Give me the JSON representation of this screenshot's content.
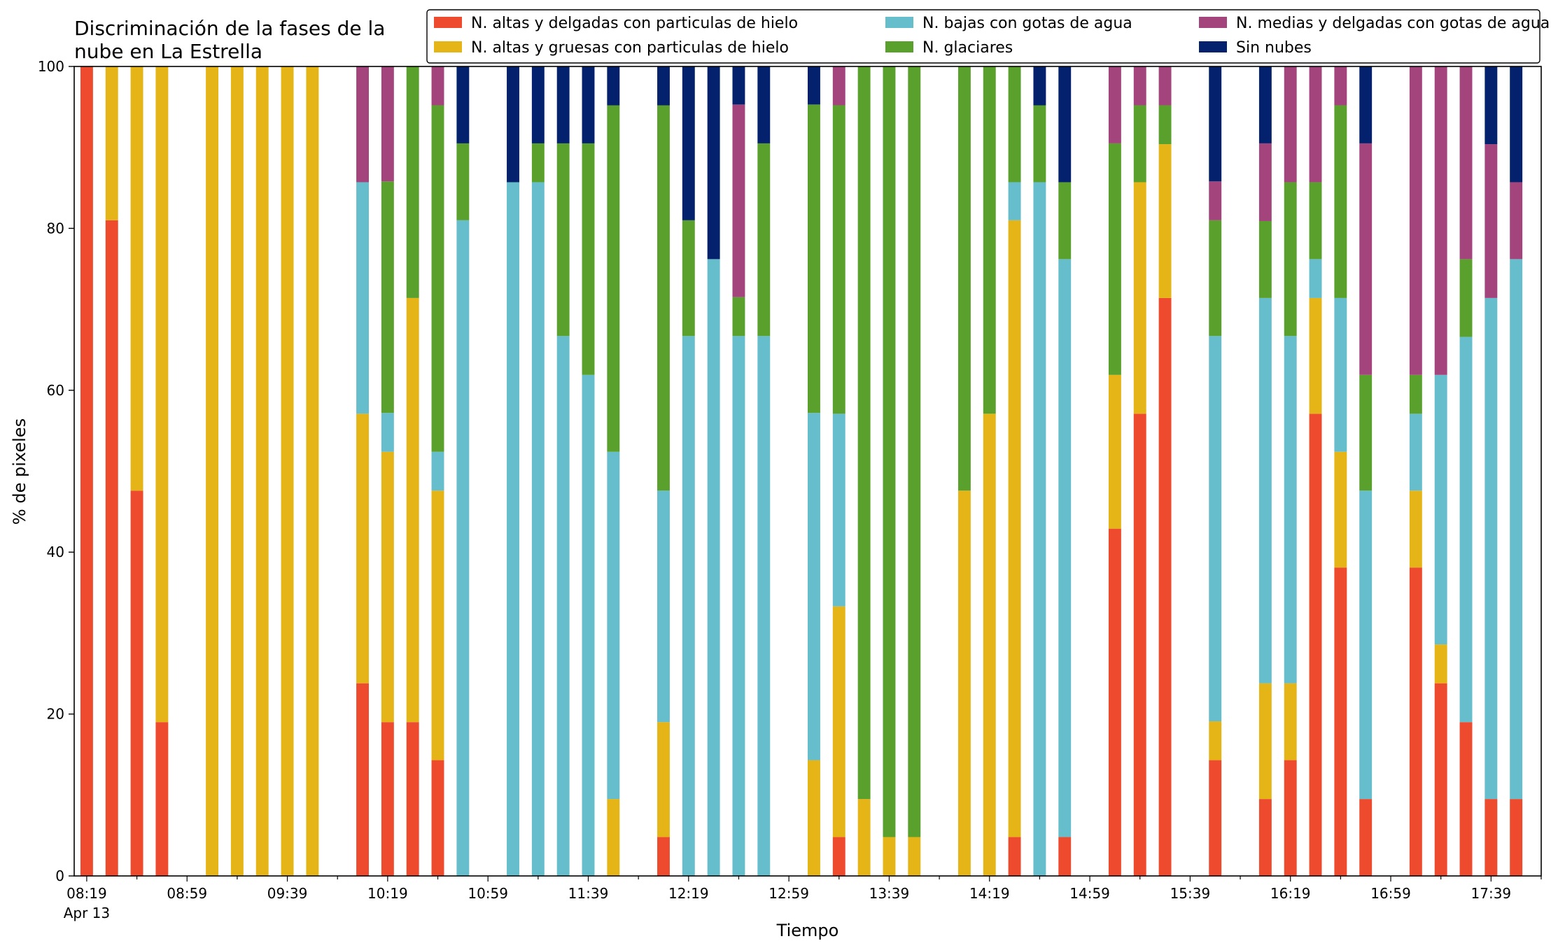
{
  "chart_data": {
    "type": "bar",
    "stacked": true,
    "title_line1": "Discriminación de la fases de la",
    "title_line2": "nube en La Estrella",
    "xlabel": "Tiempo",
    "ylabel": "% de pixeles",
    "ylim": [
      0,
      100
    ],
    "y_ticks": [
      "0",
      "20",
      "40",
      "60",
      "80",
      "100"
    ],
    "x_tick_labels": [
      "08:19",
      "08:59",
      "09:39",
      "10:19",
      "10:59",
      "11:39",
      "12:19",
      "12:59",
      "13:39",
      "14:19",
      "14:59",
      "15:39",
      "16:19",
      "16:59",
      "17:39"
    ],
    "x_date_label": "Apr 13",
    "x_start": "08:19",
    "x_end": "17:59",
    "bar_interval_minutes": 10,
    "legend_position": "top-right",
    "grid": false,
    "series": [
      {
        "name": "N. altas y delgadas con particulas de hielo",
        "color": "#ee4a2e"
      },
      {
        "name": "N. altas y gruesas con particulas de hielo",
        "color": "#e5b518"
      },
      {
        "name": "N. bajas con gotas de agua",
        "color": "#66bdcb"
      },
      {
        "name": "N. glaciares",
        "color": "#5aa02c"
      },
      {
        "name": "N. medias y delgadas con gotas de agua",
        "color": "#a3457c"
      },
      {
        "name": "Sin nubes",
        "color": "#03216c"
      }
    ],
    "bars": [
      {
        "time": "08:19",
        "values": [
          100,
          0,
          0,
          0,
          0,
          0
        ]
      },
      {
        "time": "08:29",
        "values": [
          81,
          19,
          0,
          0,
          0,
          0
        ]
      },
      {
        "time": "08:39",
        "values": [
          47.6,
          52.4,
          0,
          0,
          0,
          0
        ]
      },
      {
        "time": "08:49",
        "values": [
          19,
          81,
          0,
          0,
          0,
          0
        ]
      },
      {
        "time": "09:09",
        "values": [
          0,
          100,
          0,
          0,
          0,
          0
        ]
      },
      {
        "time": "09:19",
        "values": [
          0,
          100,
          0,
          0,
          0,
          0
        ]
      },
      {
        "time": "09:29",
        "values": [
          0,
          100,
          0,
          0,
          0,
          0
        ]
      },
      {
        "time": "09:39",
        "values": [
          0,
          100,
          0,
          0,
          0,
          0
        ]
      },
      {
        "time": "09:49",
        "values": [
          0,
          100,
          0,
          0,
          0,
          0
        ]
      },
      {
        "time": "10:09",
        "values": [
          23.8,
          33.3,
          28.6,
          0,
          14.3,
          0
        ]
      },
      {
        "time": "10:19",
        "values": [
          19,
          33.4,
          4.8,
          28.6,
          14.2,
          0
        ]
      },
      {
        "time": "10:29",
        "values": [
          19,
          52.4,
          0,
          28.6,
          0,
          0
        ]
      },
      {
        "time": "10:39",
        "values": [
          14.3,
          33.3,
          4.8,
          42.8,
          4.8,
          0
        ]
      },
      {
        "time": "10:49",
        "values": [
          0,
          0,
          81,
          9.5,
          0,
          9.5
        ]
      },
      {
        "time": "11:09",
        "values": [
          0,
          0,
          85.7,
          0,
          0,
          14.3
        ]
      },
      {
        "time": "11:19",
        "values": [
          0,
          0,
          85.7,
          4.8,
          0,
          9.5
        ]
      },
      {
        "time": "11:29",
        "values": [
          0,
          0,
          66.7,
          23.8,
          0,
          9.5
        ]
      },
      {
        "time": "11:39",
        "values": [
          0,
          0,
          61.9,
          28.6,
          0,
          9.5
        ]
      },
      {
        "time": "11:49",
        "values": [
          0,
          9.5,
          42.9,
          42.8,
          0,
          4.8
        ]
      },
      {
        "time": "12:09",
        "values": [
          4.8,
          14.2,
          28.6,
          47.6,
          0,
          4.8
        ]
      },
      {
        "time": "12:19",
        "values": [
          0,
          0,
          66.7,
          14.3,
          0,
          19
        ]
      },
      {
        "time": "12:29",
        "values": [
          0,
          0,
          76.2,
          0,
          0,
          23.8
        ]
      },
      {
        "time": "12:39",
        "values": [
          0,
          0,
          66.7,
          4.8,
          23.8,
          4.7
        ]
      },
      {
        "time": "12:49",
        "values": [
          0,
          0,
          66.7,
          23.8,
          0,
          9.5
        ]
      },
      {
        "time": "13:09",
        "values": [
          0,
          14.3,
          42.9,
          38.1,
          0,
          4.7
        ]
      },
      {
        "time": "13:19",
        "values": [
          4.8,
          28.5,
          23.8,
          38.1,
          4.8,
          0
        ]
      },
      {
        "time": "13:29",
        "values": [
          0,
          9.5,
          0,
          90.5,
          0,
          0
        ]
      },
      {
        "time": "13:39",
        "values": [
          0,
          4.8,
          0,
          95.2,
          0,
          0
        ]
      },
      {
        "time": "13:49",
        "values": [
          0,
          4.8,
          0,
          95.2,
          0,
          0
        ]
      },
      {
        "time": "14:09",
        "values": [
          0,
          47.6,
          0,
          52.4,
          0,
          0
        ]
      },
      {
        "time": "14:19",
        "values": [
          0,
          57.1,
          0,
          42.9,
          0,
          0
        ]
      },
      {
        "time": "14:29",
        "values": [
          4.8,
          76.2,
          4.7,
          14.3,
          0,
          0
        ]
      },
      {
        "time": "14:39",
        "values": [
          0,
          0,
          85.7,
          9.5,
          0,
          4.8
        ]
      },
      {
        "time": "14:49",
        "values": [
          4.8,
          0,
          71.4,
          9.5,
          0,
          14.3
        ]
      },
      {
        "time": "15:09",
        "values": [
          42.9,
          19,
          0,
          28.6,
          9.5,
          0
        ]
      },
      {
        "time": "15:19",
        "values": [
          57.1,
          28.6,
          0,
          9.5,
          4.8,
          0
        ]
      },
      {
        "time": "15:29",
        "values": [
          71.4,
          19,
          0,
          4.8,
          4.8,
          0
        ]
      },
      {
        "time": "15:49",
        "values": [
          14.3,
          4.8,
          47.6,
          14.3,
          4.8,
          14.2
        ]
      },
      {
        "time": "16:09",
        "values": [
          9.5,
          14.3,
          47.6,
          9.5,
          9.6,
          9.5
        ]
      },
      {
        "time": "16:19",
        "values": [
          14.3,
          9.5,
          42.9,
          19,
          14.3,
          0
        ]
      },
      {
        "time": "16:29",
        "values": [
          57.1,
          14.3,
          4.8,
          9.5,
          14.3,
          0
        ]
      },
      {
        "time": "16:39",
        "values": [
          38.1,
          14.3,
          19,
          23.8,
          4.8,
          0
        ]
      },
      {
        "time": "16:49",
        "values": [
          9.5,
          0,
          38.1,
          14.3,
          28.6,
          9.5
        ]
      },
      {
        "time": "17:09",
        "values": [
          38.1,
          9.5,
          9.5,
          4.8,
          38.1,
          0
        ]
      },
      {
        "time": "17:19",
        "values": [
          23.8,
          4.8,
          33.3,
          0,
          38.1,
          0
        ]
      },
      {
        "time": "17:29",
        "values": [
          19,
          0,
          47.6,
          9.6,
          23.8,
          0
        ]
      },
      {
        "time": "17:39",
        "values": [
          9.5,
          0,
          61.9,
          0,
          19,
          9.6
        ]
      },
      {
        "time": "17:49",
        "values": [
          9.5,
          0,
          66.7,
          0,
          9.5,
          14.3
        ]
      }
    ]
  }
}
